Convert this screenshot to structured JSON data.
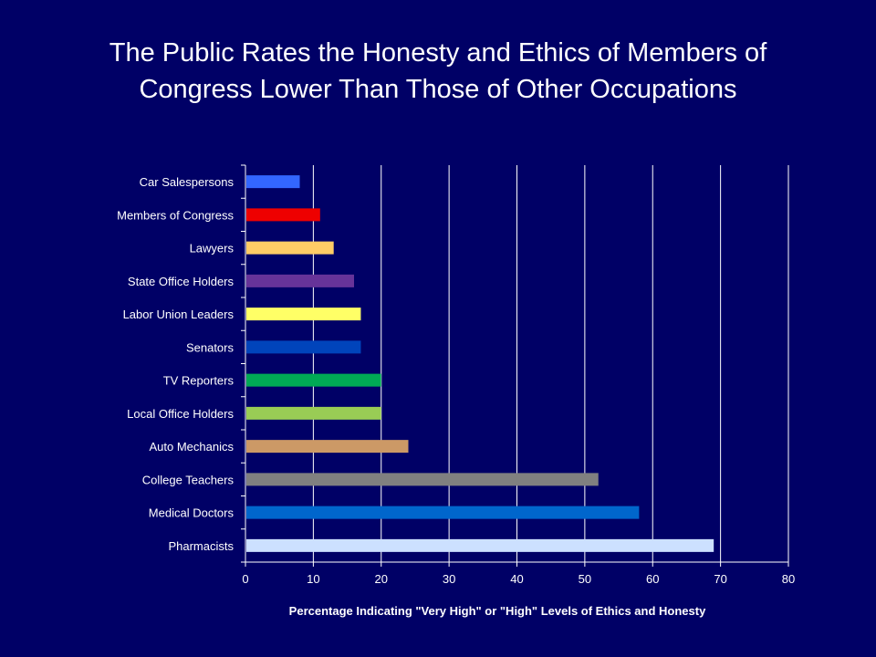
{
  "colors": {
    "background": "#000066",
    "text": "#ffffff",
    "gridline": "#ffffff"
  },
  "chart_data": {
    "type": "bar",
    "orientation": "horizontal",
    "title_lines": [
      "The Public Rates the Honesty and Ethics of Members of",
      "Congress Lower Than Those of Other Occupations"
    ],
    "xlabel": "Percentage Indicating \"Very High\" or \"High\" Levels of Ethics and Honesty",
    "ylabel": "",
    "xlim": [
      0,
      80
    ],
    "xticks": [
      0,
      10,
      20,
      30,
      40,
      50,
      60,
      70,
      80
    ],
    "grid": true,
    "legend": "none",
    "categories": [
      "Car Salespersons",
      "Members of Congress",
      "Lawyers",
      "State Office Holders",
      "Labor Union Leaders",
      "Senators",
      "TV Reporters",
      "Local Office Holders",
      "Auto Mechanics",
      "College Teachers",
      "Medical Doctors",
      "Pharmacists"
    ],
    "values": [
      8,
      11,
      13,
      16,
      17,
      17,
      20,
      20,
      24,
      52,
      58,
      69
    ],
    "bar_colors": [
      "#3366ff",
      "#ee0000",
      "#ffcc66",
      "#663399",
      "#ffff66",
      "#0044bb",
      "#00aa55",
      "#99cc55",
      "#cc9966",
      "#808080",
      "#0066cc",
      "#cce0ff"
    ]
  }
}
